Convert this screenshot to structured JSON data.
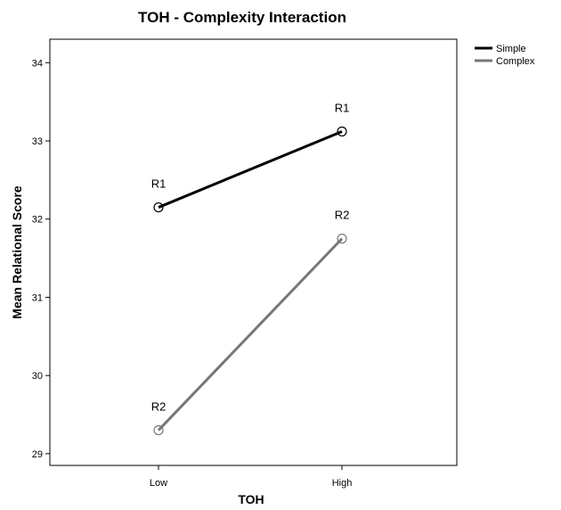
{
  "chart_data": {
    "type": "line",
    "title": "TOH - Complexity Interaction",
    "xlabel": "TOH",
    "ylabel": "Mean Relational Score",
    "categories": [
      "Low",
      "High"
    ],
    "ylim": [
      28.85,
      34.3
    ],
    "yticks": [
      29,
      30,
      31,
      32,
      33,
      34
    ],
    "grid": false,
    "legend_position": "top-right",
    "series": [
      {
        "name": "Simple",
        "values": [
          32.15,
          33.12
        ],
        "labels": [
          "R1",
          "R1"
        ],
        "color": "#000000"
      },
      {
        "name": "Complex",
        "values": [
          29.3,
          31.75
        ],
        "labels": [
          "R2",
          "R2"
        ],
        "color": "#777777"
      }
    ]
  }
}
